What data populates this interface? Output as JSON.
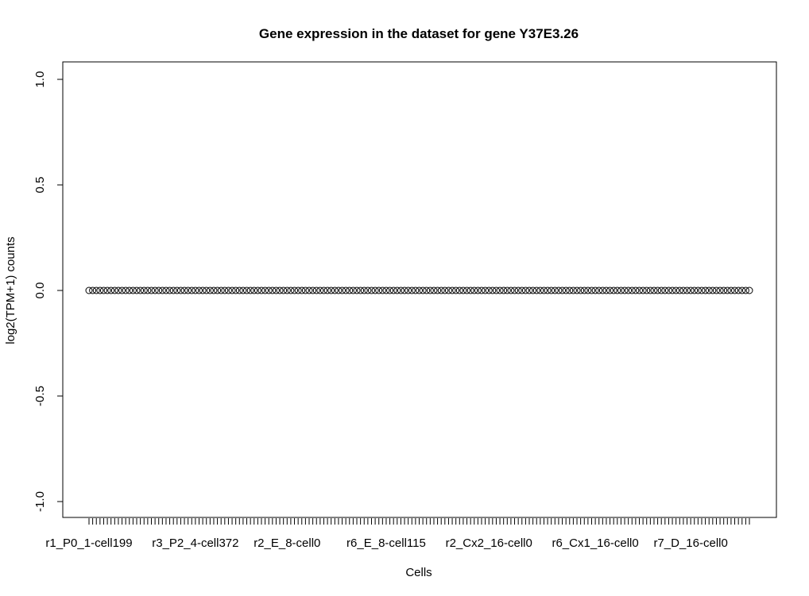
{
  "chart_data": {
    "type": "scatter",
    "title": "Gene expression in the dataset for gene Y37E3.26",
    "xlabel": "Cells",
    "ylabel": "log2(TPM+1) counts",
    "ylim": [
      -1.0,
      1.0
    ],
    "y_ticks": [
      -1.0,
      -0.5,
      0.0,
      0.5,
      1.0
    ],
    "y_tick_labels": [
      "-1.0",
      "-0.5",
      "0.0",
      "0.5",
      "1.0"
    ],
    "n_points": 181,
    "point_value": 0,
    "x_tick_labels": [
      {
        "index": 0,
        "label": "r1_P0_1-cell199"
      },
      {
        "index": 29,
        "label": "r3_P2_4-cell372"
      },
      {
        "index": 54,
        "label": "r2_E_8-cell0"
      },
      {
        "index": 81,
        "label": "r6_E_8-cell115"
      },
      {
        "index": 109,
        "label": "r2_Cx2_16-cell0"
      },
      {
        "index": 138,
        "label": "r6_Cx1_16-cell0"
      },
      {
        "index": 164,
        "label": "r7_D_16-cell0"
      }
    ],
    "marker": "open-circle",
    "grid": false,
    "legend": "none",
    "colors": {
      "points": "#000000",
      "axes": "#000000",
      "background": "#ffffff"
    }
  }
}
